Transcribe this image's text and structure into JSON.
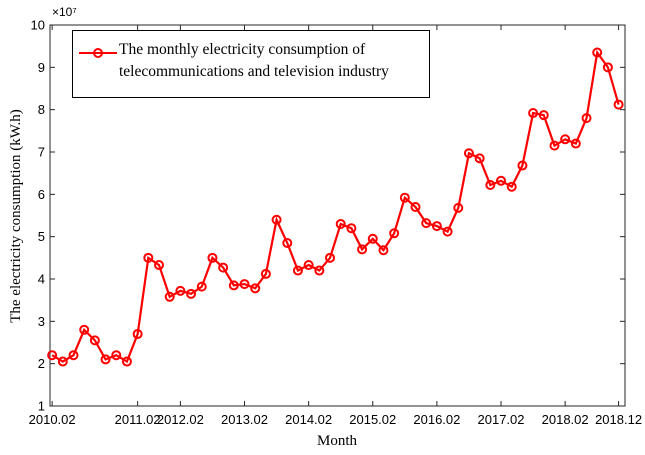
{
  "chart_data": {
    "type": "line",
    "xlabel": "Month",
    "ylabel": "The electricity consumption (kW.h)",
    "y_multiplier": "×10⁷",
    "x": [
      1,
      2,
      3,
      4,
      5,
      6,
      7,
      8,
      9,
      10,
      11,
      12,
      13,
      14,
      15,
      16,
      17,
      18,
      19,
      20,
      21,
      22,
      23,
      24,
      25,
      26,
      27,
      28,
      29,
      30,
      31,
      32,
      33,
      34,
      35,
      36,
      37,
      38,
      39,
      40,
      41,
      42,
      43,
      44,
      45,
      46,
      47,
      48,
      49,
      50,
      51,
      52,
      53,
      54
    ],
    "series": [
      {
        "name": "The monthly electricity consumption of telecommunications and television industry",
        "color": "#ff0000",
        "values": [
          2.2,
          2.05,
          2.2,
          2.8,
          2.55,
          2.1,
          2.2,
          2.05,
          2.7,
          4.5,
          4.33,
          3.58,
          3.72,
          3.65,
          3.82,
          4.5,
          4.27,
          3.85,
          3.88,
          3.78,
          4.12,
          5.4,
          4.85,
          4.2,
          4.33,
          4.2,
          4.5,
          5.3,
          5.2,
          4.7,
          4.95,
          4.68,
          5.08,
          5.92,
          5.7,
          5.32,
          5.25,
          5.12,
          5.68,
          6.97,
          6.85,
          6.22,
          6.32,
          6.18,
          6.68,
          7.92,
          7.87,
          7.15,
          7.3,
          7.2,
          7.8,
          9.35,
          9.0,
          8.12
        ]
      }
    ],
    "xlim": [
      0.8,
      54.6
    ],
    "xticks": [
      {
        "value": 1,
        "label": "2010.02"
      },
      {
        "value": 9,
        "label": "2011.02"
      },
      {
        "value": 13,
        "label": "2012.02"
      },
      {
        "value": 19,
        "label": "2013.02"
      },
      {
        "value": 25,
        "label": "2014.02"
      },
      {
        "value": 31,
        "label": "2015.02"
      },
      {
        "value": 37,
        "label": "2016.02"
      },
      {
        "value": 43,
        "label": "2017.02"
      },
      {
        "value": 49,
        "label": "2018.02"
      },
      {
        "value": 54,
        "label": "2018.12"
      }
    ],
    "ylim": [
      1,
      10
    ],
    "yticks": [
      1,
      2,
      3,
      4,
      5,
      6,
      7,
      8,
      9,
      10
    ],
    "legend": "upper left",
    "grid": false
  }
}
